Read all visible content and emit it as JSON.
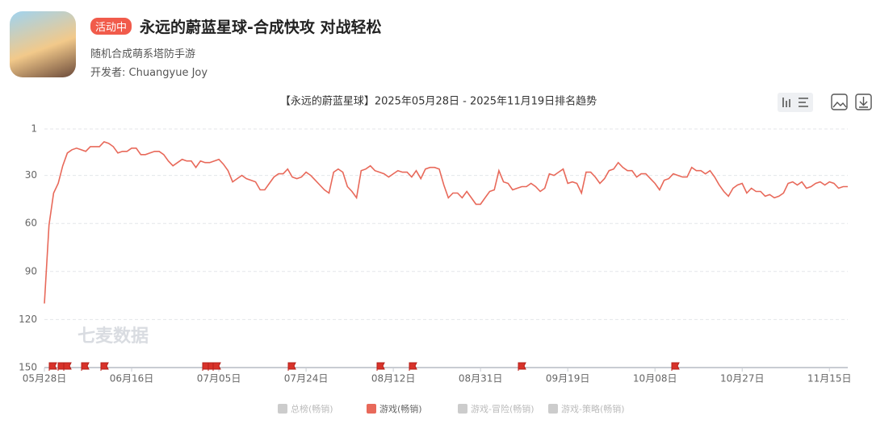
{
  "header": {
    "badge": "活动中",
    "title": "永远的蔚蓝星球-合成快攻 对战轻松",
    "subtitle": "随机合成萌系塔防手游",
    "developer": "开发者: Chuangyue Joy"
  },
  "watermark": "七麦数据",
  "chart_data": {
    "type": "line",
    "title": "【永远的蔚蓝星球】2025年05月28日 - 2025年11月19日排名趋势",
    "categories": [
      "05月28日",
      null,
      null,
      null,
      null,
      null,
      null,
      null,
      null,
      null,
      null,
      null,
      null,
      null,
      null,
      null,
      null,
      null,
      null,
      "06月16日",
      null,
      null,
      null,
      null,
      null,
      null,
      null,
      null,
      null,
      null,
      null,
      null,
      null,
      null,
      null,
      null,
      null,
      null,
      "07月05日",
      null,
      null,
      null,
      null,
      null,
      null,
      null,
      null,
      null,
      null,
      null,
      null,
      null,
      null,
      null,
      null,
      null,
      null,
      "07月24日",
      null,
      null,
      null,
      null,
      null,
      null,
      null,
      null,
      null,
      null,
      null,
      null,
      null,
      null,
      null,
      null,
      null,
      null,
      "08月12日",
      null,
      null,
      null,
      null,
      null,
      null,
      null,
      null,
      null,
      null,
      null,
      null,
      null,
      null,
      null,
      null,
      null,
      null,
      "08月31日",
      null,
      null,
      null,
      null,
      null,
      null,
      null,
      null,
      null,
      null,
      null,
      null,
      null,
      null,
      null,
      null,
      null,
      null,
      "09月19日",
      null,
      null,
      null,
      null,
      null,
      null,
      null,
      null,
      null,
      null,
      null,
      null,
      null,
      null,
      null,
      null,
      null,
      null,
      "10月08日",
      null,
      null,
      null,
      null,
      null,
      null,
      null,
      null,
      null,
      null,
      null,
      null,
      null,
      null,
      null,
      null,
      null,
      null,
      "10月27日",
      null,
      null,
      null,
      null,
      null,
      null,
      null,
      null,
      null,
      null,
      null,
      null,
      null,
      null,
      null,
      null,
      null,
      null,
      "11月15日",
      null,
      null,
      null,
      null
    ],
    "series": [
      {
        "name": "游戏(畅销)",
        "color": "#e8695a",
        "values": [
          110,
          61,
          41,
          35,
          24,
          16,
          14,
          13,
          14,
          15,
          12,
          12,
          12,
          9,
          10,
          12,
          16,
          15,
          15,
          13,
          13,
          17,
          17,
          16,
          15,
          15,
          17,
          21,
          24,
          22,
          20,
          21,
          21,
          25,
          21,
          22,
          22,
          21,
          20,
          23,
          27,
          34,
          32,
          30,
          32,
          33,
          34,
          39,
          39,
          35,
          31,
          29,
          29,
          26,
          31,
          32,
          31,
          28,
          30,
          33,
          36,
          39,
          41,
          28,
          26,
          28,
          37,
          40,
          44,
          27,
          26,
          24,
          27,
          28,
          29,
          31,
          29,
          27,
          28,
          28,
          31,
          27,
          32,
          26,
          25,
          25,
          26,
          36,
          44,
          41,
          41,
          44,
          40,
          44,
          48,
          48,
          44,
          40,
          39,
          27,
          34,
          35,
          39,
          38,
          37,
          37,
          35,
          37,
          40,
          38,
          29,
          30,
          28,
          26,
          35,
          34,
          35,
          41,
          28,
          28,
          31,
          35,
          32,
          27,
          26,
          22,
          25,
          27,
          27,
          31,
          29,
          29,
          32,
          35,
          39,
          33,
          32,
          29,
          30,
          31,
          31,
          25,
          27,
          27,
          29,
          27,
          31,
          36,
          40,
          43,
          38,
          36,
          35,
          41,
          38,
          40,
          40,
          43,
          42,
          44,
          43,
          41,
          35,
          34,
          36,
          34,
          38,
          37,
          35,
          34,
          36,
          34,
          35,
          38,
          37,
          37
        ]
      }
    ],
    "legend": [
      {
        "name": "总榜(畅销)",
        "color": "#cccccc"
      },
      {
        "series": 0
      },
      {
        "name": "游戏-冒险(畅销)",
        "color": "#cccccc"
      },
      {
        "name": "游戏-策略(畅销)",
        "color": "#cccccc"
      }
    ],
    "ylim": [
      1,
      150
    ],
    "yticks": [
      1,
      30,
      60,
      90,
      120,
      150
    ],
    "y_inverted": true,
    "grid": true
  }
}
